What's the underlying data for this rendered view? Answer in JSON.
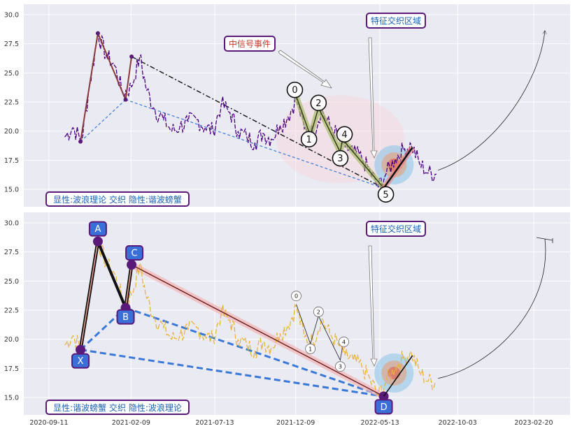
{
  "colors": {
    "bg": "#eaeaf2",
    "grid": "#ffffff",
    "top_price": "#4b0082",
    "bottom_price": "#e8b030",
    "accent_purple": "#5a1a7a",
    "label_blue": "#1a5fb4",
    "label_red": "#c0392b",
    "box_blue": "#3a6fd8",
    "dash_blue": "#3a78d8",
    "leg_brown": "#8b3a3a",
    "leg_green": "#6b8e23",
    "highlight_red": "#e74c3c",
    "circle_blue": "#87c3e8"
  },
  "chart_data": [
    {
      "type": "line",
      "panel": "top",
      "yticks": [
        "30.0",
        "27.5",
        "25.0",
        "22.5",
        "20.0",
        "17.5",
        "15.0"
      ],
      "ylim": [
        13.5,
        30.9
      ],
      "xticks": [],
      "series": [
        {
          "role": "price",
          "x": [
            "2020-10-10",
            "2020-10-25",
            "2020-11-10",
            "2020-11-25",
            "2020-12-10",
            "2020-12-25",
            "2021-01-10",
            "2021-01-25",
            "2021-02-10",
            "2021-02-25",
            "2021-03-10",
            "2021-03-25",
            "2021-04-10",
            "2021-04-25",
            "2021-05-10",
            "2021-05-25",
            "2021-06-10",
            "2021-06-25",
            "2021-07-10",
            "2021-07-25",
            "2021-08-10",
            "2021-08-25",
            "2021-09-10",
            "2021-09-25",
            "2021-10-10",
            "2021-10-25",
            "2021-11-10",
            "2021-11-25",
            "2021-12-10",
            "2021-12-25",
            "2022-01-10",
            "2022-01-25",
            "2022-02-10",
            "2022-02-25",
            "2022-03-10",
            "2022-03-25",
            "2022-04-10",
            "2022-04-25",
            "2022-05-10",
            "2022-05-25",
            "2022-06-10",
            "2022-06-25",
            "2022-07-10",
            "2022-07-25",
            "2022-08-10",
            "2022-08-25"
          ],
          "values": [
            19.5,
            20.3,
            19.2,
            24.0,
            28.4,
            26.5,
            25.6,
            23.2,
            23.8,
            26.4,
            23.5,
            21.8,
            21.0,
            20.0,
            20.4,
            20.8,
            21.0,
            20.3,
            20.0,
            22.3,
            21.6,
            20.0,
            19.5,
            19.0,
            19.8,
            19.3,
            20.5,
            21.2,
            22.8,
            20.2,
            19.8,
            21.8,
            20.4,
            19.6,
            18.6,
            18.2,
            17.6,
            16.5,
            15.2,
            16.4,
            17.6,
            18.4,
            18.8,
            17.2,
            16.4,
            16.3
          ]
        }
      ],
      "annotations": {
        "signal_label": "中信号事件",
        "zone_label": "特征交织区域",
        "corner_label": "显性:波浪理论 交织 隐性:谐波螃蟹",
        "wave_labels": [
          "0",
          "1",
          "2",
          "3",
          "4",
          "5"
        ],
        "wave_points": [
          {
            "label": "0",
            "date": "2021-12-10",
            "value": 23.0
          },
          {
            "label": "1",
            "date": "2022-01-05",
            "value": 19.6
          },
          {
            "label": "2",
            "date": "2022-01-20",
            "value": 22.0
          },
          {
            "label": "3",
            "date": "2022-03-01",
            "value": 18.2
          },
          {
            "label": "4",
            "date": "2022-03-05",
            "value": 19.3
          },
          {
            "label": "5",
            "date": "2022-05-20",
            "value": 15.1
          }
        ],
        "pattern_points": [
          {
            "date": "2020-11-08",
            "value": 19.1
          },
          {
            "date": "2020-12-10",
            "value": 28.4
          },
          {
            "date": "2021-01-30",
            "value": 22.7
          },
          {
            "date": "2021-02-10",
            "value": 26.4
          },
          {
            "date": "2022-05-20",
            "value": 15.1
          }
        ],
        "forecast_leg": [
          {
            "date": "2022-05-20",
            "value": 15.1
          },
          {
            "date": "2022-07-12",
            "value": 18.6
          }
        ]
      }
    },
    {
      "type": "line",
      "panel": "bottom",
      "yticks": [
        "30.0",
        "27.5",
        "25.0",
        "22.5",
        "20.0",
        "17.5",
        "15.0"
      ],
      "ylim": [
        13.5,
        30.9
      ],
      "xticks": [
        "2020-09-11",
        "2021-02-09",
        "2021-07-13",
        "2021-12-09",
        "2022-05-13",
        "2022-10-03",
        "2023-02-20"
      ],
      "series": [
        {
          "role": "price",
          "x": [
            "2020-10-10",
            "2020-10-25",
            "2020-11-10",
            "2020-11-25",
            "2020-12-10",
            "2020-12-25",
            "2021-01-10",
            "2021-01-25",
            "2021-02-10",
            "2021-02-25",
            "2021-03-10",
            "2021-03-25",
            "2021-04-10",
            "2021-04-25",
            "2021-05-10",
            "2021-05-25",
            "2021-06-10",
            "2021-06-25",
            "2021-07-10",
            "2021-07-25",
            "2021-08-10",
            "2021-08-25",
            "2021-09-10",
            "2021-09-25",
            "2021-10-10",
            "2021-10-25",
            "2021-11-10",
            "2021-11-25",
            "2021-12-10",
            "2021-12-25",
            "2022-01-10",
            "2022-01-25",
            "2022-02-10",
            "2022-02-25",
            "2022-03-10",
            "2022-03-25",
            "2022-04-10",
            "2022-04-25",
            "2022-05-10",
            "2022-05-25",
            "2022-06-10",
            "2022-06-25",
            "2022-07-10",
            "2022-07-25",
            "2022-08-10",
            "2022-08-25"
          ],
          "values": [
            19.5,
            20.3,
            19.2,
            24.0,
            28.4,
            26.5,
            25.6,
            23.2,
            23.8,
            26.4,
            23.5,
            21.8,
            21.0,
            20.0,
            20.4,
            20.8,
            21.0,
            20.3,
            20.0,
            22.3,
            21.6,
            20.0,
            19.5,
            19.0,
            19.8,
            19.3,
            20.5,
            21.2,
            22.8,
            20.2,
            19.8,
            21.8,
            20.4,
            19.6,
            18.6,
            18.2,
            17.6,
            16.5,
            15.2,
            16.4,
            17.6,
            18.4,
            18.8,
            17.2,
            16.4,
            16.3
          ]
        }
      ],
      "annotations": {
        "zone_label": "特征交织区域",
        "corner_label": "显性:谐波螃蟹 交织 隐性:波浪理论",
        "pattern_labels": [
          "X",
          "A",
          "B",
          "C",
          "D"
        ],
        "pattern_points": [
          {
            "label": "X",
            "date": "2020-11-08",
            "value": 19.1
          },
          {
            "label": "A",
            "date": "2020-12-10",
            "value": 28.4
          },
          {
            "label": "B",
            "date": "2021-01-30",
            "value": 22.7
          },
          {
            "label": "C",
            "date": "2021-02-10",
            "value": 26.4
          },
          {
            "label": "D",
            "date": "2022-05-20",
            "value": 15.1
          }
        ],
        "wave_labels": [
          "0",
          "1",
          "2",
          "3",
          "4"
        ],
        "wave_points": [
          {
            "label": "0",
            "date": "2021-12-10",
            "value": 23.0
          },
          {
            "label": "1",
            "date": "2022-01-05",
            "value": 19.6
          },
          {
            "label": "2",
            "date": "2022-01-20",
            "value": 22.0
          },
          {
            "label": "3",
            "date": "2022-03-01",
            "value": 18.2
          },
          {
            "label": "4",
            "date": "2022-03-05",
            "value": 19.3
          }
        ],
        "forecast_leg": [
          {
            "date": "2022-05-20",
            "value": 15.1
          },
          {
            "date": "2022-07-12",
            "value": 18.6
          }
        ]
      }
    }
  ]
}
